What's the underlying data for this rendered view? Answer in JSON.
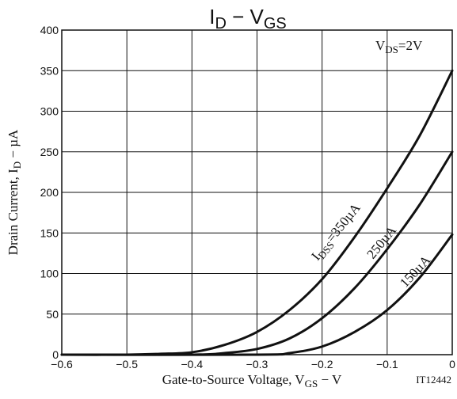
{
  "chart_data": {
    "type": "line",
    "title": {
      "main": "I",
      "sub1": "D",
      "dash": " − V",
      "sub2": "GS"
    },
    "xlabel": {
      "pre": "Gate-to-Source Voltage, V",
      "sub": "GS",
      "post": " − V"
    },
    "ylabel": {
      "pre": "Drain Current, I",
      "sub": "D",
      "post": " − µA"
    },
    "xlim": [
      -0.6,
      0
    ],
    "ylim": [
      0,
      400
    ],
    "x_ticks": [
      -0.6,
      -0.5,
      -0.4,
      -0.3,
      -0.2,
      -0.1,
      0
    ],
    "x_tick_labels": [
      "−0.6",
      "−0.5",
      "−0.4",
      "−0.3",
      "−0.2",
      "−0.1",
      "0"
    ],
    "y_ticks": [
      0,
      50,
      100,
      150,
      200,
      250,
      300,
      350,
      400
    ],
    "y_tick_labels": [
      "0",
      "50",
      "100",
      "150",
      "200",
      "250",
      "300",
      "350",
      "400"
    ],
    "grid": true,
    "condition": {
      "pre": "V",
      "sub": "DS",
      "post": "=2V"
    },
    "figure_code": "IT12442",
    "series": [
      {
        "label_pre": "I",
        "label_sub": "DSS",
        "label_post": "=350µA",
        "x": [
          -0.6,
          -0.5,
          -0.45,
          -0.4,
          -0.35,
          -0.3,
          -0.25,
          -0.2,
          -0.15,
          -0.1,
          -0.05,
          0
        ],
        "y": [
          0,
          0,
          1,
          3,
          12,
          28,
          55,
          93,
          145,
          205,
          270,
          350
        ]
      },
      {
        "label_pre": "",
        "label_sub": "",
        "label_post": "250µA",
        "x": [
          -0.6,
          -0.4,
          -0.35,
          -0.3,
          -0.25,
          -0.2,
          -0.15,
          -0.1,
          -0.05,
          0
        ],
        "y": [
          0,
          0,
          2,
          7,
          20,
          45,
          82,
          130,
          185,
          250
        ]
      },
      {
        "label_pre": "",
        "label_sub": "",
        "label_post": "150µA",
        "x": [
          -0.6,
          -0.3,
          -0.25,
          -0.2,
          -0.15,
          -0.1,
          -0.05,
          0
        ],
        "y": [
          0,
          0,
          2,
          10,
          28,
          55,
          95,
          148
        ]
      }
    ]
  }
}
